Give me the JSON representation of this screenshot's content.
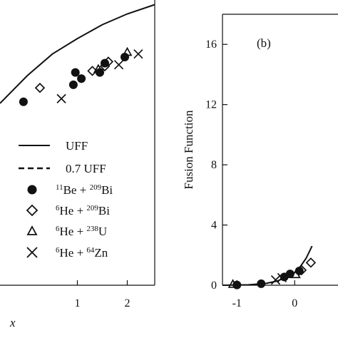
{
  "chart_data": [
    {
      "type": "scatter",
      "panel": "a",
      "xlabel": "x",
      "xlim": [
        -0.55,
        2.55
      ],
      "ylim": [
        0.0,
        1.85
      ],
      "xticks": [
        1,
        2
      ],
      "xtick_labels": [
        "1",
        "2"
      ],
      "lines": [
        {
          "name": "UFF",
          "style": "solid",
          "x": [
            -0.55,
            0.0,
            0.5,
            1.0,
            1.5,
            2.0,
            2.55
          ],
          "y": [
            1.18,
            1.36,
            1.5,
            1.6,
            1.69,
            1.76,
            1.82
          ]
        }
      ],
      "series": [
        {
          "name": "11Be + 209Bi",
          "marker": "filled-circle",
          "x": [
            -0.08,
            0.92,
            0.96,
            1.08,
            1.45,
            1.55,
            1.95
          ],
          "y": [
            1.19,
            1.3,
            1.38,
            1.34,
            1.38,
            1.44,
            1.48
          ]
        },
        {
          "name": "6He + 209Bi",
          "marker": "open-diamond",
          "x": [
            0.25,
            1.3,
            1.55,
            1.62
          ],
          "y": [
            1.28,
            1.39,
            1.42,
            1.45
          ]
        },
        {
          "name": "6He + 238U",
          "marker": "open-triangle",
          "x": [
            1.42,
            2.0
          ],
          "y": [
            1.4,
            1.51
          ]
        },
        {
          "name": "6He + 64Zn",
          "marker": "cross",
          "x": [
            0.68,
            1.83,
            2.22
          ],
          "y": [
            1.21,
            1.43,
            1.5
          ]
        }
      ]
    },
    {
      "type": "scatter",
      "panel": "b",
      "panel_label": "(b)",
      "ylabel": "Fusion Function",
      "xlim": [
        -1.25,
        0.75
      ],
      "ylim": [
        0,
        18
      ],
      "xticks": [
        -1,
        0
      ],
      "xtick_labels": [
        "-1",
        "0"
      ],
      "yticks": [
        0,
        4,
        8,
        12,
        16
      ],
      "ytick_labels": [
        "0",
        "4",
        "8",
        "12",
        "16"
      ],
      "lines": [
        {
          "name": "UFF",
          "style": "solid",
          "x": [
            -1.25,
            -0.8,
            -0.5,
            -0.3,
            -0.1,
            0.0,
            0.1,
            0.2,
            0.3
          ],
          "y": [
            0.0,
            0.03,
            0.12,
            0.28,
            0.6,
            0.85,
            1.25,
            1.8,
            2.6
          ]
        }
      ],
      "series": [
        {
          "name": "11Be + 209Bi",
          "marker": "filled-circle",
          "x": [
            -1.0,
            -0.58,
            -0.18,
            -0.08,
            0.08
          ],
          "y": [
            0.02,
            0.1,
            0.55,
            0.75,
            0.95
          ]
        },
        {
          "name": "6He + 209Bi",
          "marker": "open-diamond",
          "x": [
            0.12,
            0.28
          ],
          "y": [
            1.0,
            1.5
          ]
        },
        {
          "name": "6He + 238U",
          "marker": "open-triangle",
          "x": [
            -1.07,
            0.02
          ],
          "y": [
            0.05,
            0.7
          ]
        },
        {
          "name": "6He + 64Zn",
          "marker": "cross",
          "x": [
            -0.33,
            -0.22
          ],
          "y": [
            0.35,
            0.5
          ]
        }
      ]
    }
  ],
  "legend": {
    "placement": "lower-right of panel a",
    "entries": [
      {
        "key": "uff",
        "style": "solid",
        "text": "UFF"
      },
      {
        "key": "uff07",
        "style": "dashed",
        "text": "0.7 UFF"
      },
      {
        "key": "be",
        "marker": "filled-circle",
        "m1": "11",
        "e1": "Be + ",
        "m2": "209",
        "e2": "Bi"
      },
      {
        "key": "hebi",
        "marker": "open-diamond",
        "m1": "6",
        "e1": "He + ",
        "m2": "209",
        "e2": "Bi"
      },
      {
        "key": "heu",
        "marker": "open-triangle",
        "m1": "6",
        "e1": "He + ",
        "m2": "238",
        "e2": "U"
      },
      {
        "key": "hezn",
        "marker": "cross",
        "m1": "6",
        "e1": "He + ",
        "m2": "64",
        "e2": "Zn"
      }
    ]
  }
}
